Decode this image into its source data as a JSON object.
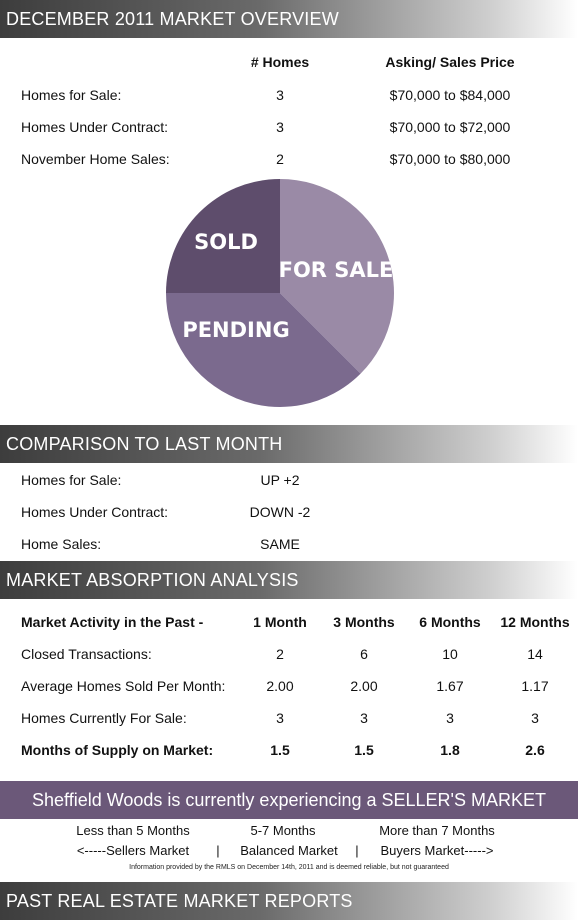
{
  "section1": {
    "title": "DECEMBER 2011 MARKET OVERVIEW",
    "col_homes": "# Homes",
    "col_price": "Asking/ Sales Price",
    "rows": [
      {
        "label": "Homes for Sale:",
        "homes": "3",
        "price": "$70,000 to $84,000"
      },
      {
        "label": "Homes Under Contract:",
        "homes": "3",
        "price": "$70,000 to $72,000"
      },
      {
        "label": "November Home Sales:",
        "homes": "2",
        "price": "$70,000 to $80,000"
      }
    ]
  },
  "chart_data": {
    "type": "pie",
    "slices": [
      {
        "label": "FOR SALE",
        "value": 3,
        "color": "#9a8aa6"
      },
      {
        "label": "PENDING",
        "value": 3,
        "color": "#7b6a8e"
      },
      {
        "label": "SOLD",
        "value": 2,
        "color": "#5e4d6c"
      }
    ]
  },
  "section2": {
    "title": "COMPARISON TO LAST MONTH",
    "rows": [
      {
        "label": "Homes for Sale:",
        "value": "UP +2"
      },
      {
        "label": "Homes Under Contract:",
        "value": "DOWN -2"
      },
      {
        "label": "Home Sales:",
        "value": "SAME"
      }
    ]
  },
  "section3": {
    "title": "MARKET ABSORPTION ANALYSIS",
    "header": [
      "Market Activity in the Past -",
      "1 Month",
      "3 Months",
      "6 Months",
      "12 Months"
    ],
    "rows": [
      {
        "label": "Closed Transactions:",
        "values": [
          "2",
          "6",
          "10",
          "14"
        ]
      },
      {
        "label": "Average Homes Sold Per Month:",
        "values": [
          "2.00",
          "2.00",
          "1.67",
          "1.17"
        ]
      },
      {
        "label": "Homes Currently For Sale:",
        "values": [
          "3",
          "3",
          "3",
          "3"
        ]
      },
      {
        "label": "Months of Supply on Market:",
        "values": [
          "1.5",
          "1.5",
          "1.8",
          "2.6"
        ]
      }
    ]
  },
  "banner": "Sheffield Woods is currently experiencing a SELLER'S MARKET",
  "legend": {
    "sellers_range": "Less than 5 Months",
    "sellers_label": "<-----Sellers Market",
    "sep": "|",
    "balanced_range": "5-7 Months",
    "balanced_label": "Balanced Market",
    "buyers_range": "More than 7 Months",
    "buyers_label": "Buyers Market----->"
  },
  "note": "Information provided by the RMLS on December 14th, 2011 and is deemed reliable, but not guaranteed",
  "section4": {
    "title": "PAST REAL ESTATE MARKET REPORTS"
  },
  "colors": {
    "band_dark": "#3d3d3d",
    "banner": "#6b5879"
  }
}
